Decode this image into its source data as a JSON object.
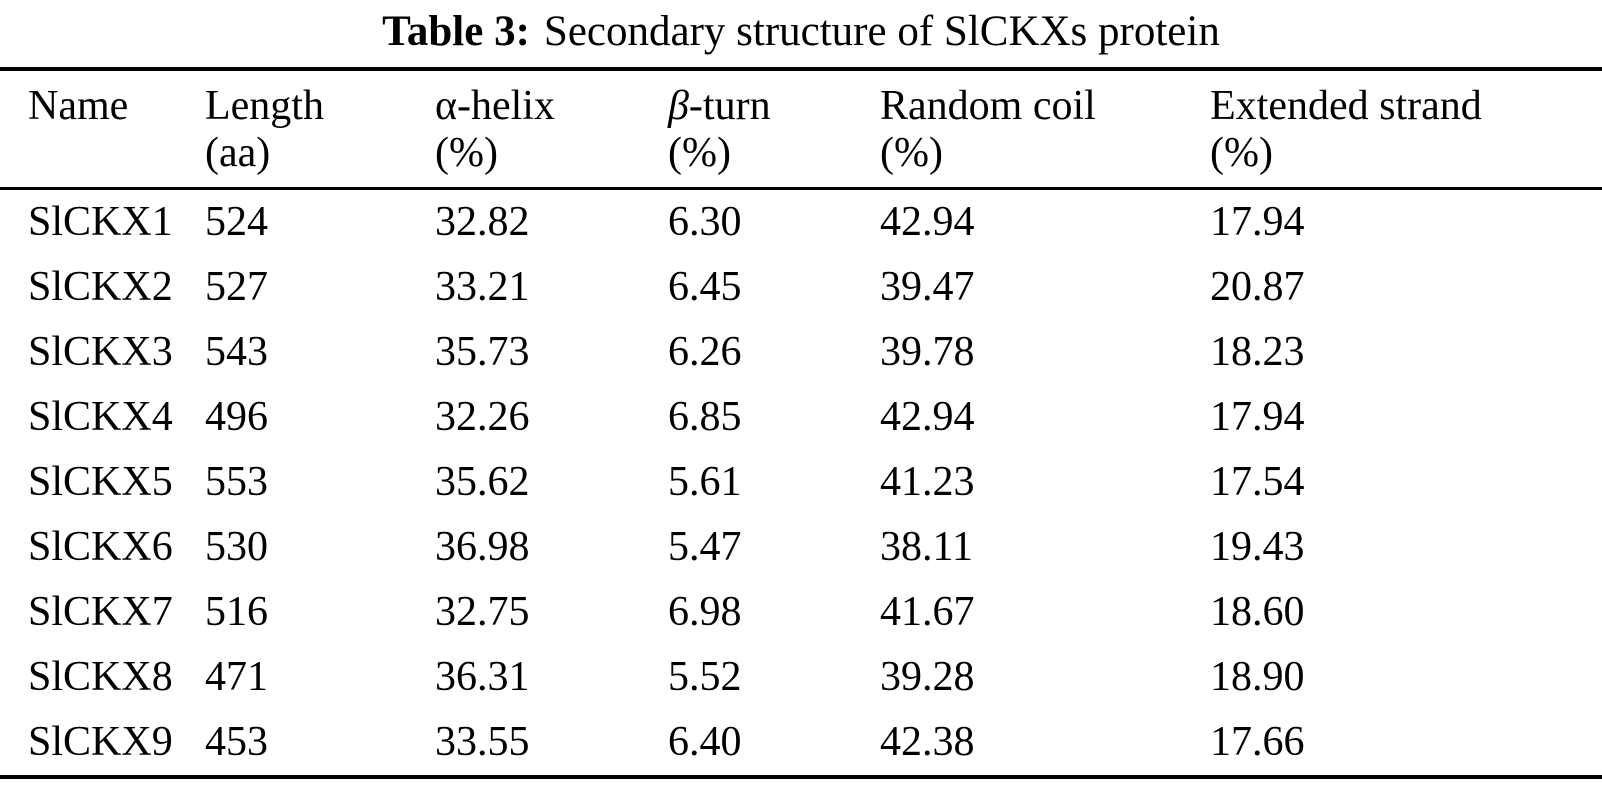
{
  "title": {
    "label": "Table 3:",
    "text": "Secondary structure of SlCKXs protein"
  },
  "table": {
    "columns": [
      {
        "line1": "Name",
        "line2": ""
      },
      {
        "line1": "Length",
        "line2": "(aa)"
      },
      {
        "line1": "α-helix",
        "line2": "(%)"
      },
      {
        "line1": "β-turn",
        "line2": "(%)"
      },
      {
        "line1": "Random coil",
        "line2": "(%)"
      },
      {
        "line1": "Extended strand",
        "line2": "(%)"
      }
    ],
    "rows": [
      [
        "SlCKX1",
        "524",
        "32.82",
        "6.30",
        "42.94",
        "17.94"
      ],
      [
        "SlCKX2",
        "527",
        "33.21",
        "6.45",
        "39.47",
        "20.87"
      ],
      [
        "SlCKX3",
        "543",
        "35.73",
        "6.26",
        "39.78",
        "18.23"
      ],
      [
        "SlCKX4",
        "496",
        "32.26",
        "6.85",
        "42.94",
        "17.94"
      ],
      [
        "SlCKX5",
        "553",
        "35.62",
        "5.61",
        "41.23",
        "17.54"
      ],
      [
        "SlCKX6",
        "530",
        "36.98",
        "5.47",
        "38.11",
        "19.43"
      ],
      [
        "SlCKX7",
        "516",
        "32.75",
        "6.98",
        "41.67",
        "18.60"
      ],
      [
        "SlCKX8",
        "471",
        "36.31",
        "5.52",
        "39.28",
        "18.90"
      ],
      [
        "SlCKX9",
        "453",
        "33.55",
        "6.40",
        "42.38",
        "17.66"
      ]
    ]
  },
  "colors": {
    "text": "#000000",
    "background": "#ffffff",
    "rule": "#000000"
  }
}
